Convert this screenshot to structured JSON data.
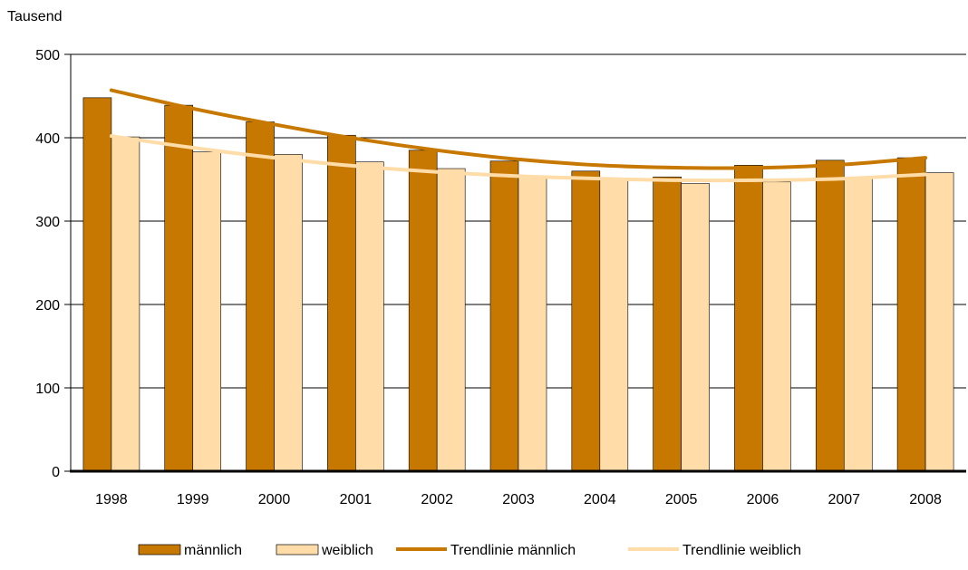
{
  "chart_data": {
    "type": "bar",
    "title": "",
    "ylabel": "Tausend",
    "xlabel": "",
    "ylim": [
      0,
      500
    ],
    "yticks": [
      0,
      100,
      200,
      300,
      400,
      500
    ],
    "grid": true,
    "legend_position": "bottom",
    "categories": [
      "1998",
      "1999",
      "2000",
      "2001",
      "2002",
      "2003",
      "2004",
      "2005",
      "2006",
      "2007",
      "2008"
    ],
    "series": [
      {
        "name": "männlich",
        "kind": "bar",
        "color": "#C77800",
        "values": [
          448,
          439,
          419,
          403,
          385,
          372,
          360,
          353,
          367,
          373,
          376
        ]
      },
      {
        "name": "weiblich",
        "kind": "bar",
        "color": "#FFDCA8",
        "values": [
          401,
          383,
          380,
          371,
          363,
          354,
          350,
          345,
          347,
          352,
          358
        ]
      }
    ],
    "trendlines": [
      {
        "name": "Trendlinie männlich",
        "color": "#C77800",
        "values": [
          457,
          435,
          416,
          399,
          385,
          374,
          367,
          364,
          364,
          368,
          376
        ]
      },
      {
        "name": "Trendlinie weiblich",
        "color": "#FFDCA8",
        "values": [
          402,
          388,
          376,
          366,
          359,
          354,
          351,
          349,
          349,
          351,
          356
        ]
      }
    ]
  }
}
